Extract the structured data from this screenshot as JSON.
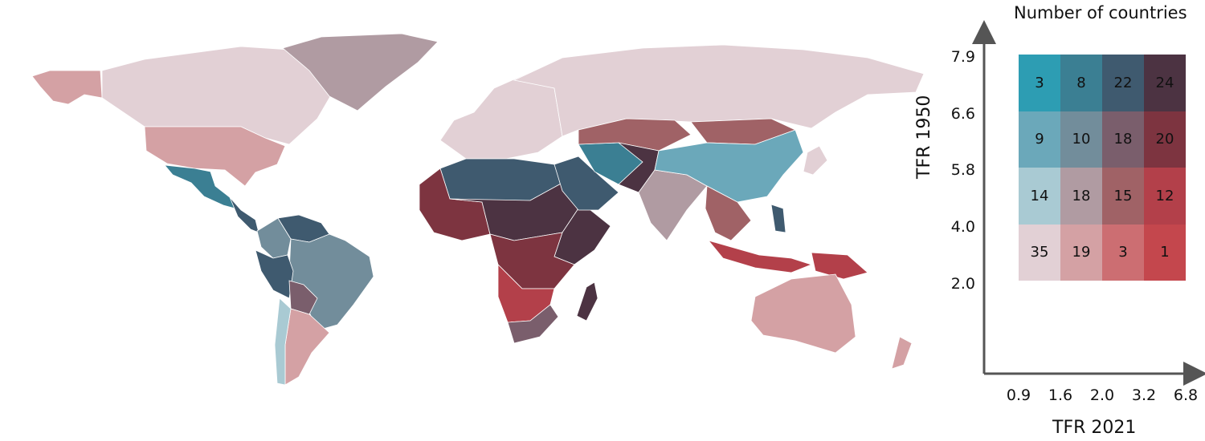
{
  "legend": {
    "title": "Number of countries",
    "x_axis_label": "TFR 2021",
    "y_axis_label": "TFR 1950",
    "x_ticks": [
      "0.9",
      "1.6",
      "2.0",
      "3.2",
      "6.8"
    ],
    "y_ticks": [
      "7.9",
      "6.6",
      "5.8",
      "4.0",
      "2.0"
    ],
    "grid": [
      {
        "count": "3",
        "color": "#2d9db3"
      },
      {
        "count": "8",
        "color": "#3b7f93"
      },
      {
        "count": "22",
        "color": "#3f5a6f"
      },
      {
        "count": "24",
        "color": "#4c3342"
      },
      {
        "count": "9",
        "color": "#6ba8ba"
      },
      {
        "count": "10",
        "color": "#728d9b"
      },
      {
        "count": "18",
        "color": "#7a5e6c"
      },
      {
        "count": "20",
        "color": "#7d3440"
      },
      {
        "count": "14",
        "color": "#a9cad3"
      },
      {
        "count": "18",
        "color": "#b09ba2"
      },
      {
        "count": "15",
        "color": "#a06266"
      },
      {
        "count": "12",
        "color": "#b3404a"
      },
      {
        "count": "35",
        "color": "#e2d0d5"
      },
      {
        "count": "19",
        "color": "#d4a1a4"
      },
      {
        "count": "3",
        "color": "#cc6e72"
      },
      {
        "count": "1",
        "color": "#c4474d"
      }
    ]
  },
  "map_regions": [
    {
      "name": "Alaska",
      "color": "#d4a1a4"
    },
    {
      "name": "Canada",
      "color": "#e2d0d5"
    },
    {
      "name": "Greenland",
      "color": "#b09ba2"
    },
    {
      "name": "United States",
      "color": "#d4a1a4"
    },
    {
      "name": "Mexico",
      "color": "#3b7f93"
    },
    {
      "name": "Central America",
      "color": "#3f5a6f"
    },
    {
      "name": "Colombia",
      "color": "#728d9b"
    },
    {
      "name": "Venezuela",
      "color": "#3f5a6f"
    },
    {
      "name": "Brazil",
      "color": "#728d9b"
    },
    {
      "name": "Peru",
      "color": "#3f5a6f"
    },
    {
      "name": "Bolivia",
      "color": "#7a5e6c"
    },
    {
      "name": "Argentina",
      "color": "#d4a1a4"
    },
    {
      "name": "Chile",
      "color": "#a9cad3"
    },
    {
      "name": "Europe",
      "color": "#e2d0d5"
    },
    {
      "name": "Russia",
      "color": "#e2d0d5"
    },
    {
      "name": "North Africa",
      "color": "#3f5a6f"
    },
    {
      "name": "West Africa",
      "color": "#7d3440"
    },
    {
      "name": "Sahel",
      "color": "#4c3342"
    },
    {
      "name": "East Africa",
      "color": "#4c3342"
    },
    {
      "name": "Central Africa",
      "color": "#7d3440"
    },
    {
      "name": "Southern Africa",
      "color": "#b3404a"
    },
    {
      "name": "South Africa",
      "color": "#7a5e6c"
    },
    {
      "name": "Madagascar",
      "color": "#4c3342"
    },
    {
      "name": "Arabian Peninsula",
      "color": "#3f5a6f"
    },
    {
      "name": "Iran",
      "color": "#3b7f93"
    },
    {
      "name": "Central Asia",
      "color": "#a06266"
    },
    {
      "name": "Mongolia",
      "color": "#a06266"
    },
    {
      "name": "Afghanistan-Pakistan",
      "color": "#4c3342"
    },
    {
      "name": "India",
      "color": "#b09ba2"
    },
    {
      "name": "China",
      "color": "#6ba8ba"
    },
    {
      "name": "Southeast Asia",
      "color": "#a06266"
    },
    {
      "name": "Indonesia",
      "color": "#b3404a"
    },
    {
      "name": "Philippines",
      "color": "#3f5a6f"
    },
    {
      "name": "Papua New Guinea",
      "color": "#b3404a"
    },
    {
      "name": "Japan",
      "color": "#e2d0d5"
    },
    {
      "name": "Australia",
      "color": "#d4a1a4"
    },
    {
      "name": "New Zealand",
      "color": "#d4a1a4"
    }
  ]
}
